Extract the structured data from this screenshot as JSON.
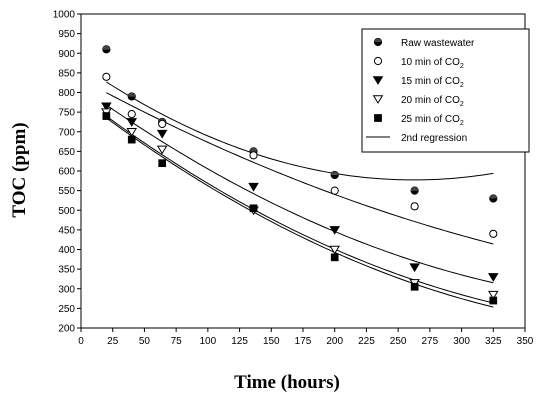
{
  "chart_data": {
    "type": "scatter",
    "title": "",
    "xlabel": "Time (hours)",
    "ylabel": "TOC (ppm)",
    "xlim": [
      0,
      350
    ],
    "ylim": [
      200,
      1000
    ],
    "x_ticks": [
      0,
      25,
      50,
      75,
      100,
      125,
      150,
      175,
      200,
      225,
      250,
      275,
      300,
      325,
      350
    ],
    "y_ticks": [
      200,
      250,
      300,
      350,
      400,
      450,
      500,
      550,
      600,
      650,
      700,
      750,
      800,
      850,
      900,
      950,
      1000
    ],
    "grid": false,
    "legend_position": "top-right",
    "series": [
      {
        "name": "Raw wastewater",
        "name_main": "Raw wastewater",
        "name_sub": "",
        "marker": "circle-half",
        "x": [
          20,
          40,
          64,
          136,
          200,
          263,
          325
        ],
        "y": [
          910,
          790,
          725,
          650,
          590,
          550,
          530
        ],
        "fit": [
          0.00425,
          -2.23,
          869.8
        ]
      },
      {
        "name": "10 min of CO2",
        "name_main": "10 min of CO",
        "name_sub": "2",
        "marker": "circle-open",
        "x": [
          20,
          40,
          64,
          136,
          200,
          263,
          325
        ],
        "y": [
          840,
          745,
          720,
          640,
          550,
          510,
          440
        ],
        "fit": [
          0.00141,
          -1.75,
          833.9
        ]
      },
      {
        "name": "15 min of CO2",
        "name_main": "15 min of CO",
        "name_sub": "2",
        "marker": "triangle-down-filled",
        "x": [
          20,
          40,
          64,
          136,
          200,
          263,
          325
        ],
        "y": [
          765,
          725,
          695,
          560,
          450,
          355,
          330
        ],
        "fit": [
          0.00245,
          -2.33,
          813.8
        ]
      },
      {
        "name": "20 min of CO2",
        "name_main": "20 min of CO",
        "name_sub": "2",
        "marker": "triangle-down-open",
        "x": [
          20,
          40,
          64,
          136,
          200,
          263,
          325
        ],
        "y": [
          750,
          700,
          655,
          500,
          400,
          315,
          285
        ],
        "fit": [
          0.00258,
          -2.45,
          787.6
        ]
      },
      {
        "name": "25 min of CO2",
        "name_main": "25 min of CO",
        "name_sub": "2",
        "marker": "square-filled",
        "x": [
          20,
          40,
          64,
          136,
          200,
          263,
          325
        ],
        "y": [
          740,
          680,
          620,
          505,
          380,
          305,
          270
        ],
        "fit": [
          0.00258,
          -2.47,
          783.5
        ]
      }
    ],
    "regression_label": "2nd regression"
  }
}
